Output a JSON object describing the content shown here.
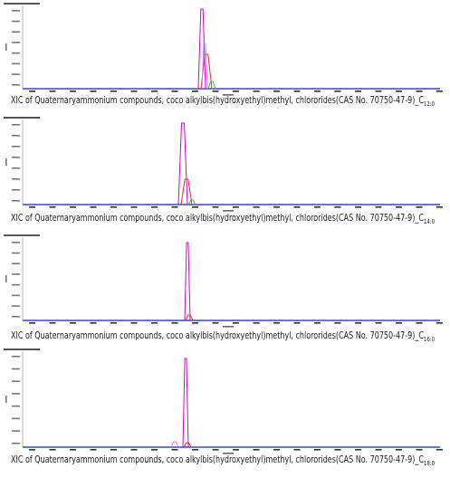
{
  "panels": [
    {
      "caption": "XIC of Quaternaryammonium compounds, coco alkylbis(hydroxyethyl)methyl, chlororides(CAS No. 70750-47-9)_C",
      "subscript": "12:0"
    },
    {
      "caption": "XIC of Quaternaryammonium compounds, coco alkylbis(hydroxyethyl)methyl, chlororides(CAS No. 70750-47-9)_C",
      "subscript": "14:0"
    },
    {
      "caption": "XIC of Quaternaryammonium compounds, coco alkylbis(hydroxyethyl)methyl, chlororides(CAS No. 70750-47-9)_C",
      "subscript": "16:0"
    },
    {
      "caption": "XIC of Quaternaryammonium compounds, coco alkylbis(hydroxyethyl)methyl, chlororides(CAS No. 70750-47-9)_C",
      "subscript": "18:0"
    }
  ]
}
